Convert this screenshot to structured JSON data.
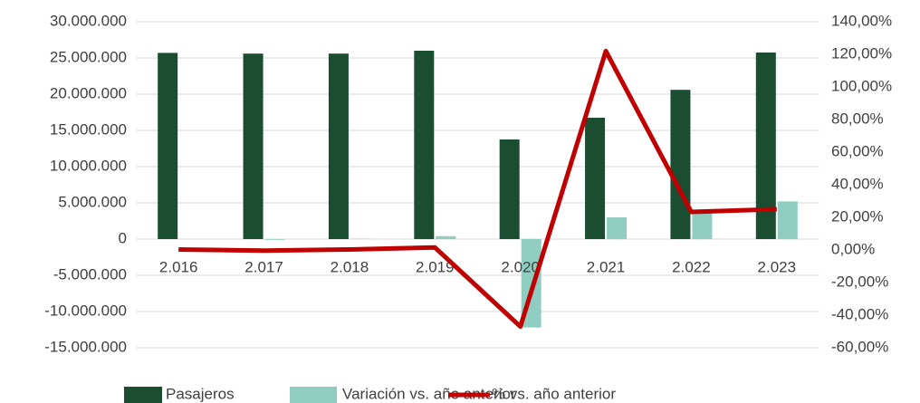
{
  "chart_data": {
    "type": "bar_line",
    "categories": [
      "2.016",
      "2.017",
      "2.018",
      "2.019",
      "2.020",
      "2.021",
      "2.022",
      "2.023"
    ],
    "series": [
      {
        "name": "Pasajeros",
        "color": "#1b4d30",
        "values": [
          25700000,
          25600000,
          25600000,
          26000000,
          13750000,
          16750000,
          20600000,
          25750000
        ]
      },
      {
        "name": "Variación vs. año anterior",
        "color": "#8ecdc0",
        "values": [
          0,
          -100000,
          50000,
          400000,
          -12200000,
          3000000,
          3800000,
          5200000
        ]
      },
      {
        "name": "% vs. año anterior",
        "color": "#c00000",
        "axis": "y2",
        "values": [
          0.3,
          -0.4,
          0.3,
          1.5,
          -47,
          122,
          23.3,
          25
        ]
      }
    ],
    "ylim": [
      -15000000,
      30000000
    ],
    "yticks": [
      {
        "value": -15000000,
        "label": "-15.000.000"
      },
      {
        "value": -10000000,
        "label": "-10.000.000"
      },
      {
        "value": -5000000,
        "label": "-5.000.000"
      },
      0,
      {
        "value": 5000000,
        "label": "5.000.000"
      },
      {
        "value": 10000000,
        "label": "10.000.000"
      },
      {
        "value": 15000000,
        "label": "15.000.000"
      },
      {
        "value": 20000000,
        "label": "20.000.000"
      },
      {
        "value": 25000000,
        "label": "25.000.000"
      },
      {
        "value": 30000000,
        "label": "30.000.000"
      }
    ],
    "y2lim": [
      -60,
      140
    ],
    "y2ticks": [
      {
        "value": -60,
        "label": "-60,00%"
      },
      {
        "value": -40,
        "label": "-40,00%"
      },
      {
        "value": -20,
        "label": "-20,00%"
      },
      {
        "value": 0,
        "label": "0,00%"
      },
      {
        "value": 20,
        "label": "20,00%"
      },
      {
        "value": 40,
        "label": "40,00%"
      },
      {
        "value": 60,
        "label": "60,00%"
      },
      {
        "value": 80,
        "label": "80,00%"
      },
      {
        "value": 100,
        "label": "100,00%"
      },
      {
        "value": 120,
        "label": "120,00%"
      },
      {
        "value": 140,
        "label": "140,00%"
      }
    ],
    "grid": true,
    "legend": "bottom"
  }
}
